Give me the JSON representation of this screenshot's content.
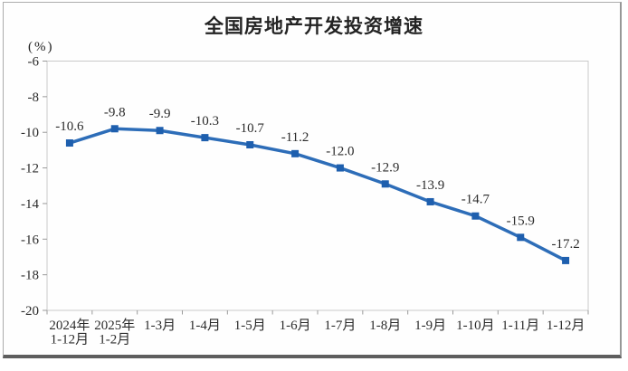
{
  "page": {
    "title": "全国房地产开发投资增速",
    "unit_label": "(%)"
  },
  "chart_data": {
    "type": "line",
    "title": "全国房地产开发投资增速",
    "ylabel": "(%)",
    "xlabel": "",
    "categories": [
      "2024年\n1-12月",
      "2025年\n1-2月",
      "1-3月",
      "1-4月",
      "1-5月",
      "1-6月",
      "1-7月",
      "1-8月",
      "1-9月",
      "1-10月",
      "1-11月",
      "1-12月"
    ],
    "series": [
      {
        "name": "全国房地产开发投资增速",
        "values": [
          -10.6,
          -9.8,
          -9.9,
          -10.3,
          -10.7,
          -11.2,
          -12.0,
          -12.9,
          -13.9,
          -14.7,
          -15.9,
          -17.2
        ]
      }
    ],
    "data_labels": [
      "-10.6",
      "-9.8",
      "-9.9",
      "-10.3",
      "-10.7",
      "-11.2",
      "-12.0",
      "-12.9",
      "-13.9",
      "-14.7",
      "-15.9",
      "-17.2"
    ],
    "y_ticks": [
      -6,
      -8,
      -10,
      -12,
      -14,
      -16,
      -18,
      -20
    ],
    "ylim": [
      -6,
      -20
    ],
    "grid": false,
    "legend_position": "none",
    "line_color": "#2d6db8",
    "marker_color": "#1e5fae",
    "marker_shape": "square",
    "axis_color": "#c9c9c9",
    "tick_color": "#9a9a9a",
    "text_color": "#2b2b2b"
  }
}
